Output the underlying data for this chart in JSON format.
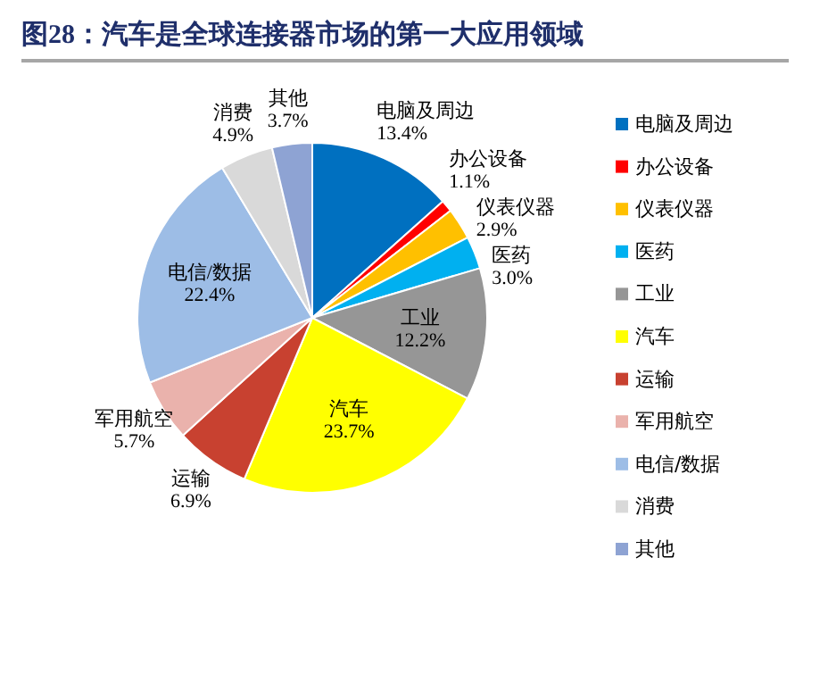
{
  "chart_data": {
    "type": "pie",
    "title": "图28：汽车是全球连接器市场的第一大应用领域",
    "categories": [
      "电脑及周边",
      "办公设备",
      "仪表仪器",
      "医药",
      "工业",
      "汽车",
      "运输",
      "军用航空",
      "电信/数据",
      "消费",
      "其他"
    ],
    "values": [
      13.4,
      1.1,
      2.9,
      3.0,
      12.2,
      23.7,
      6.9,
      5.7,
      22.4,
      4.9,
      3.7
    ],
    "colors": [
      "#0070c0",
      "#ff0000",
      "#ffc000",
      "#00b0f0",
      "#969696",
      "#ffff00",
      "#c84130",
      "#eab2ac",
      "#9dbde6",
      "#d9d9d9",
      "#8ea3d3"
    ],
    "data_labels": true,
    "value_labels": [
      "13.4%",
      "1.1%",
      "2.9%",
      "3.0%",
      "12.2%",
      "23.7%",
      "6.9%",
      "5.7%",
      "22.4%",
      "4.9%",
      "3.7%"
    ],
    "legend": "right"
  }
}
